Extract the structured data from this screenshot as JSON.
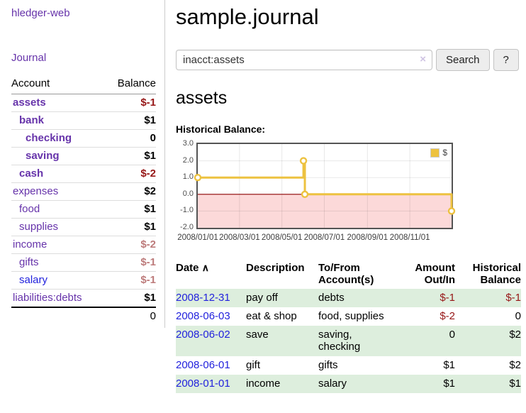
{
  "sidebar": {
    "brand": "hledger-web",
    "nav_journal": "Journal",
    "accounts_table": {
      "headers": [
        "Account",
        "Balance"
      ],
      "rows": [
        {
          "name": "assets",
          "depth": 1,
          "bold": true,
          "balance": "$-1",
          "balance_style": "neg-strong"
        },
        {
          "name": "bank",
          "depth": 2,
          "bold": true,
          "balance": "$1",
          "balance_style": "pos"
        },
        {
          "name": "checking",
          "depth": 3,
          "bold": true,
          "balance": "0",
          "balance_style": "pos"
        },
        {
          "name": "saving",
          "depth": 3,
          "bold": true,
          "balance": "$1",
          "balance_style": "pos"
        },
        {
          "name": "cash",
          "depth": 2,
          "bold": true,
          "balance": "$-2",
          "balance_style": "neg-strong"
        },
        {
          "name": "expenses",
          "depth": 1,
          "bold": false,
          "balance": "$2",
          "balance_style": "pos"
        },
        {
          "name": "food",
          "depth": 2,
          "bold": false,
          "balance": "$1",
          "balance_style": "pos"
        },
        {
          "name": "supplies",
          "depth": 2,
          "bold": false,
          "balance": "$1",
          "balance_style": "pos"
        },
        {
          "name": "income",
          "depth": 1,
          "bold": false,
          "balance": "$-2",
          "balance_style": "neg-muted"
        },
        {
          "name": "gifts",
          "depth": 2,
          "bold": false,
          "balance": "$-1",
          "balance_style": "neg-muted"
        },
        {
          "name": "salary",
          "depth": 2,
          "bold": false,
          "balance": "$-1",
          "balance_style": "neg-muted",
          "link_color": "blue"
        },
        {
          "name": "liabilities:debts",
          "depth": 1,
          "bold": false,
          "balance": "$1",
          "balance_style": "pos"
        }
      ],
      "total": "0"
    }
  },
  "header": {
    "title": "sample.journal"
  },
  "search": {
    "value": "inacct:assets",
    "clear_icon": "×",
    "button_label": "Search",
    "help_label": "?"
  },
  "account_page": {
    "heading": "assets",
    "chart_label": "Historical Balance:"
  },
  "chart_data": {
    "type": "line",
    "title": "Historical Balance:",
    "step": true,
    "xlim": [
      "2008-01-01",
      "2008-12-31"
    ],
    "ylim": [
      -2,
      3
    ],
    "grid": true,
    "legend_position": "top-right",
    "series": [
      {
        "name": "$",
        "color": "#edc240",
        "points": [
          {
            "date": "2008-01-01",
            "value": 1
          },
          {
            "date": "2008-06-01",
            "value": 2
          },
          {
            "date": "2008-06-03",
            "value": 0
          },
          {
            "date": "2008-12-31",
            "value": -1
          }
        ]
      }
    ],
    "x_ticks": [
      {
        "date": "2008-01-01",
        "label": "2008/01/01"
      },
      {
        "date": "2008-03-01",
        "label": "2008/03/01"
      },
      {
        "date": "2008-05-01",
        "label": "2008/05/01"
      },
      {
        "date": "2008-07-01",
        "label": "2008/07/01"
      },
      {
        "date": "2008-09-01",
        "label": "2008/09/01"
      },
      {
        "date": "2008-11-01",
        "label": "2008/11/01"
      }
    ],
    "y_ticks": [
      "3.0",
      "2.0",
      "1.0",
      "0.0",
      "-1.0",
      "-2.0"
    ],
    "negative_region_color": "#fcd9d9",
    "zero_line_color": "#8b0000"
  },
  "register_table": {
    "headers": {
      "date": "Date",
      "sort_icon": "∧",
      "description": "Description",
      "account_line1": "To/From",
      "account_line2": "Account(s)",
      "amount_line1": "Amount",
      "amount_line2": "Out/In",
      "balance_line1": "Historical",
      "balance_line2": "Balance"
    },
    "rows": [
      {
        "date": "2008-12-31",
        "description": "pay off",
        "accounts": "debts",
        "amount": "$-1",
        "amount_neg": true,
        "balance": "$-1",
        "balance_neg": true,
        "shade": true
      },
      {
        "date": "2008-06-03",
        "description": "eat & shop",
        "accounts": "food, supplies",
        "amount": "$-2",
        "amount_neg": true,
        "balance": "0",
        "balance_neg": false,
        "shade": false
      },
      {
        "date": "2008-06-02",
        "description": "save",
        "accounts": "saving,\nchecking",
        "amount": "0",
        "amount_neg": false,
        "balance": "$2",
        "balance_neg": false,
        "shade": true
      },
      {
        "date": "2008-06-01",
        "description": "gift",
        "accounts": "gifts",
        "amount": "$1",
        "amount_neg": false,
        "balance": "$2",
        "balance_neg": false,
        "shade": false
      },
      {
        "date": "2008-01-01",
        "description": "income",
        "accounts": "salary",
        "amount": "$1",
        "amount_neg": false,
        "balance": "$1",
        "balance_neg": false,
        "shade": true
      }
    ]
  },
  "colors": {
    "link_purple": "#6633aa",
    "link_blue": "#2222dd",
    "negative_strong": "#961616",
    "negative_muted": "#bd7b7b",
    "row_shade_green": "#ddeedd",
    "chart_line": "#edc240",
    "chart_negative_fill": "#fcd9d9",
    "chart_zero_line": "#8b0000",
    "chart_border": "#545454"
  }
}
